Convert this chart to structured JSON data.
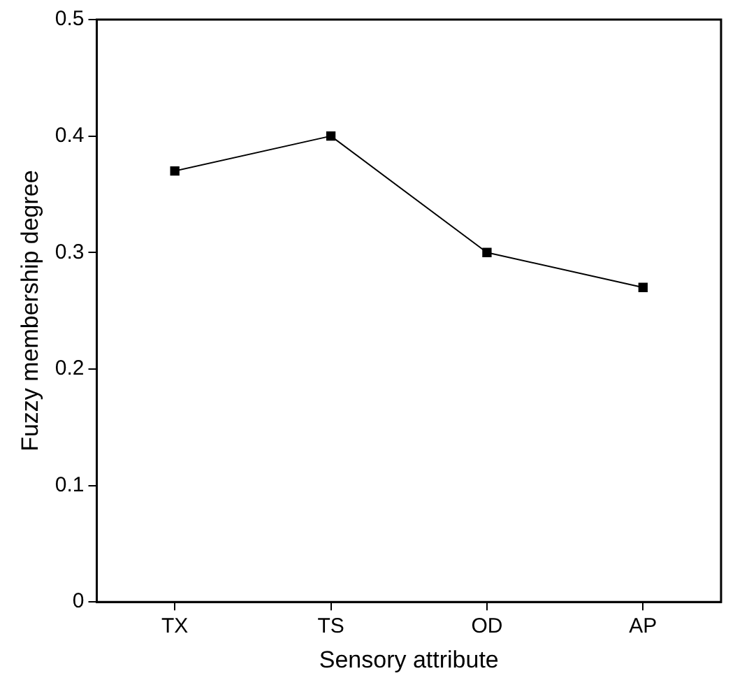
{
  "chart_data": {
    "type": "line",
    "xlabel": "Sensory attribute",
    "ylabel": "Fuzzy membership degree",
    "categories": [
      "TX",
      "TS",
      "OD",
      "AP"
    ],
    "series": [
      {
        "color": "#000000",
        "values": [
          0.37,
          0.4,
          0.3,
          0.27
        ]
      }
    ],
    "ylim": [
      0,
      0.5
    ],
    "yticks": [
      0,
      0.1,
      0.2,
      0.3,
      0.4,
      0.5
    ],
    "grid": false,
    "legend": false,
    "marker": "square",
    "line_style": "solid"
  }
}
